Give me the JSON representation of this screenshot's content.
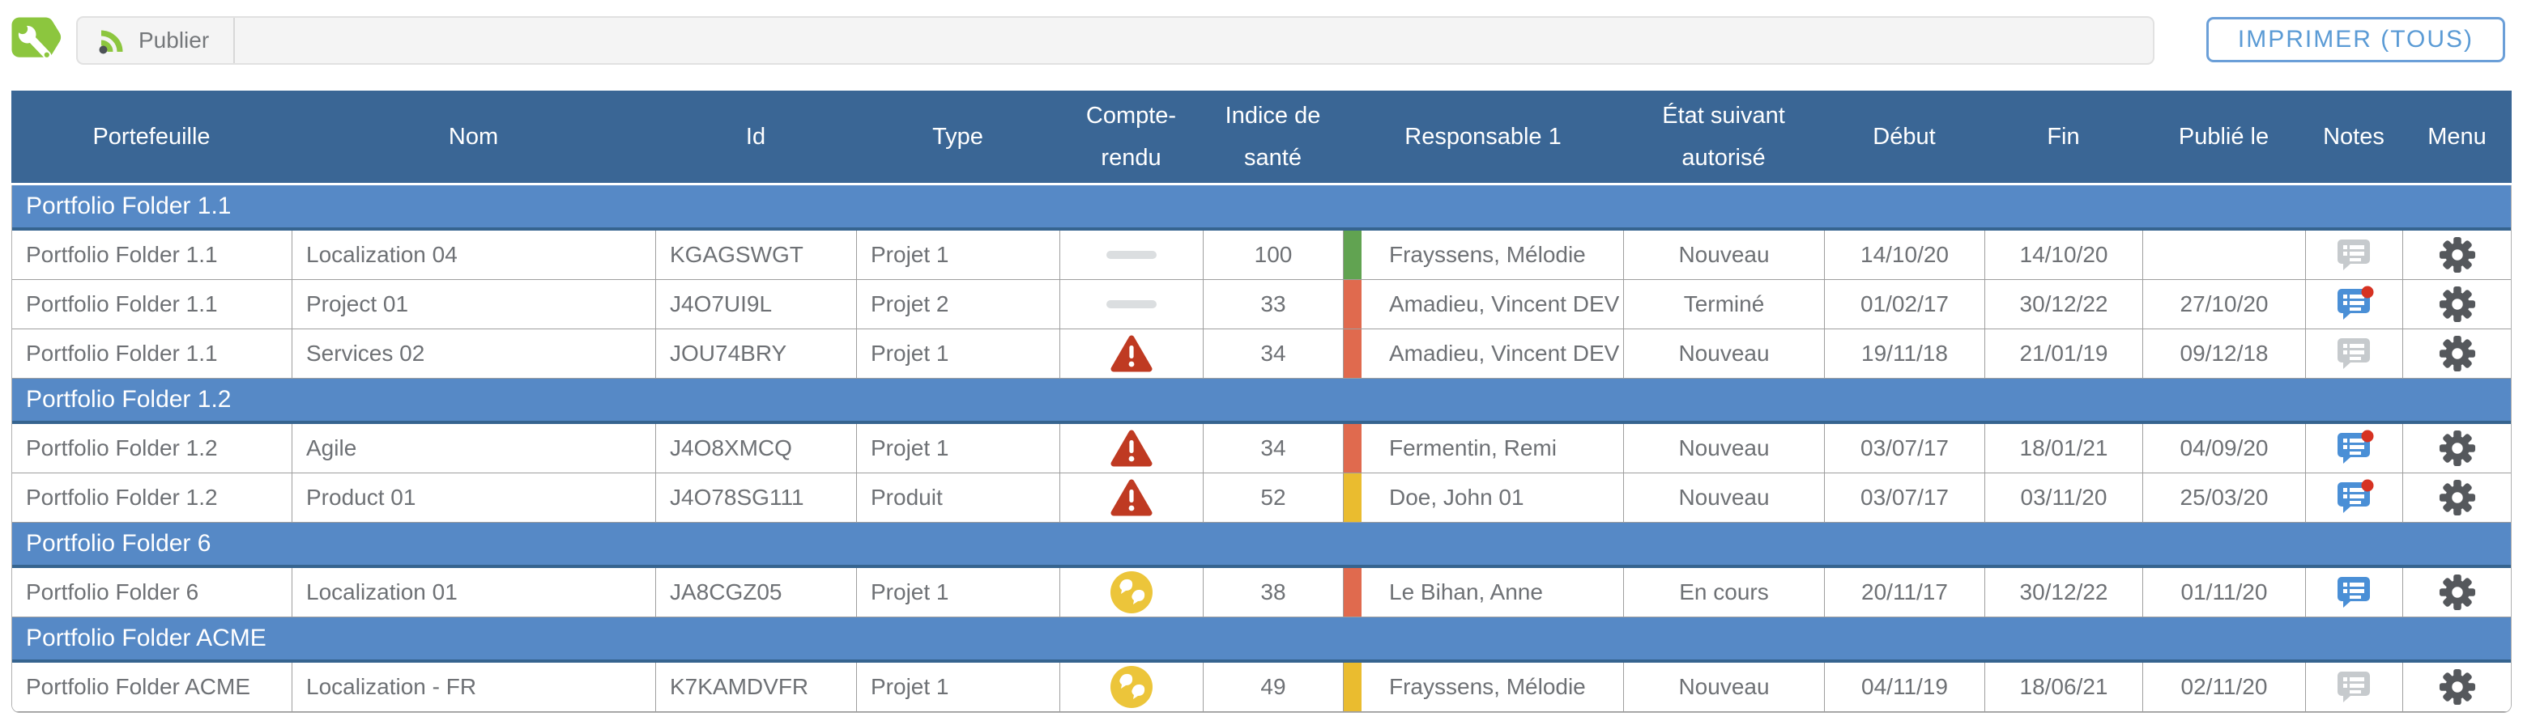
{
  "toolbar": {
    "publish_label": "Publier",
    "print_button_label": "IMPRIMER (TOUS)"
  },
  "icons": {
    "app": "wrench-icon",
    "publish": "rss-icon",
    "report_none": "dash-icon",
    "report_alert": "alert-triangle-icon",
    "report_weather": "cloudy-icon",
    "notes": "notes-bubble-icon",
    "notes_new_badge": "red-dot-badge",
    "menu": "gear-icon"
  },
  "colors": {
    "header_bg": "#3a6695",
    "group_bg": "#5689c6",
    "group_border": "#36648f",
    "health_green": "#61a351",
    "health_red": "#e06a4e",
    "health_yellow": "#eabc2f",
    "alert_red": "#bf3a22",
    "weather_yellow": "#ecc53a",
    "notes_gray": "#c6cacd",
    "notes_blue": "#4a8fd6",
    "badge_red": "#d63222",
    "gear_gray": "#55585c",
    "accent_blue": "#5b9bd5",
    "app_green": "#8cc63e"
  },
  "table": {
    "columns": [
      "Portefeuille",
      "Nom",
      "Id",
      "Type",
      "Compte-rendu",
      "Indice de santé",
      "Responsable 1",
      "État suivant autorisé",
      "Début",
      "Fin",
      "Publié le",
      "Notes",
      "Menu"
    ],
    "groups": [
      {
        "name": "Portfolio Folder 1.1",
        "rows": [
          {
            "portfolio": "Portfolio Folder 1.1",
            "name": "Localization 04",
            "id": "KGAGSWGT",
            "type": "Projet 1",
            "report": "dash",
            "health": "100",
            "health_color": "green",
            "responsible": "Frayssens, Mélodie",
            "next_state": "Nouveau",
            "start": "14/10/20",
            "end": "14/10/20",
            "published": "",
            "notes": "gray"
          },
          {
            "portfolio": "Portfolio Folder 1.1",
            "name": "Project 01",
            "id": "J4O7UI9L",
            "type": "Projet 2",
            "report": "dash",
            "health": "33",
            "health_color": "red",
            "responsible": "Amadieu, Vincent DEV",
            "next_state": "Terminé",
            "start": "01/02/17",
            "end": "30/12/22",
            "published": "27/10/20",
            "notes": "blue-dot"
          },
          {
            "portfolio": "Portfolio Folder 1.1",
            "name": "Services 02",
            "id": "JOU74BRY",
            "type": "Projet 1",
            "report": "alert",
            "health": "34",
            "health_color": "red",
            "responsible": "Amadieu, Vincent DEV",
            "next_state": "Nouveau",
            "start": "19/11/18",
            "end": "21/01/19",
            "published": "09/12/18",
            "notes": "gray"
          }
        ]
      },
      {
        "name": "Portfolio Folder 1.2",
        "rows": [
          {
            "portfolio": "Portfolio Folder 1.2",
            "name": "Agile",
            "id": "J4O8XMCQ",
            "type": "Projet 1",
            "report": "alert",
            "health": "34",
            "health_color": "red",
            "responsible": "Fermentin, Remi",
            "next_state": "Nouveau",
            "start": "03/07/17",
            "end": "18/01/21",
            "published": "04/09/20",
            "notes": "blue-dot"
          },
          {
            "portfolio": "Portfolio Folder 1.2",
            "name": "Product 01",
            "id": "J4O78SG111",
            "type": "Produit",
            "report": "alert",
            "health": "52",
            "health_color": "yellow",
            "responsible": "Doe, John 01",
            "next_state": "Nouveau",
            "start": "03/07/17",
            "end": "03/11/20",
            "published": "25/03/20",
            "notes": "blue-dot"
          }
        ]
      },
      {
        "name": "Portfolio Folder 6",
        "rows": [
          {
            "portfolio": "Portfolio Folder 6",
            "name": "Localization 01",
            "id": "JA8CGZ05",
            "type": "Projet 1",
            "report": "weather",
            "health": "38",
            "health_color": "red",
            "responsible": "Le Bihan, Anne",
            "next_state": "En cours",
            "start": "20/11/17",
            "end": "30/12/22",
            "published": "01/11/20",
            "notes": "blue"
          }
        ]
      },
      {
        "name": "Portfolio Folder ACME",
        "rows": [
          {
            "portfolio": "Portfolio Folder ACME",
            "name": "Localization - FR",
            "id": "K7KAMDVFR",
            "type": "Projet 1",
            "report": "weather",
            "health": "49",
            "health_color": "yellow",
            "responsible": "Frayssens, Mélodie",
            "next_state": "Nouveau",
            "start": "04/11/19",
            "end": "18/06/21",
            "published": "02/11/20",
            "notes": "gray"
          }
        ]
      }
    ]
  }
}
